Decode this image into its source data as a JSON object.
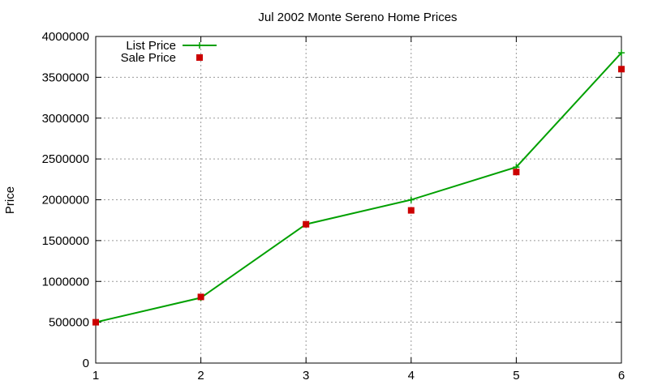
{
  "chart_data": {
    "type": "line",
    "title": "Jul 2002 Monte Sereno Home Prices",
    "xlabel": "",
    "ylabel": "Price",
    "x": [
      1,
      2,
      3,
      4,
      5,
      6
    ],
    "xlim": [
      1,
      6
    ],
    "ylim": [
      0,
      4000000
    ],
    "x_ticks": [
      "1",
      "2",
      "3",
      "4",
      "5",
      "6"
    ],
    "y_ticks": [
      "0",
      "500000",
      "1000000",
      "1500000",
      "2000000",
      "2500000",
      "3000000",
      "3500000",
      "4000000"
    ],
    "grid": true,
    "legend_position": "top-left",
    "series": [
      {
        "name": "List Price",
        "style": "lines+markers",
        "marker": "plus",
        "color": "#00a000",
        "values": [
          500000,
          800000,
          1700000,
          2000000,
          2400000,
          3800000
        ]
      },
      {
        "name": "Sale Price",
        "style": "markers",
        "marker": "square",
        "color": "#cc0000",
        "values": [
          500000,
          810000,
          1700000,
          1870000,
          2340000,
          3600000
        ]
      }
    ]
  }
}
